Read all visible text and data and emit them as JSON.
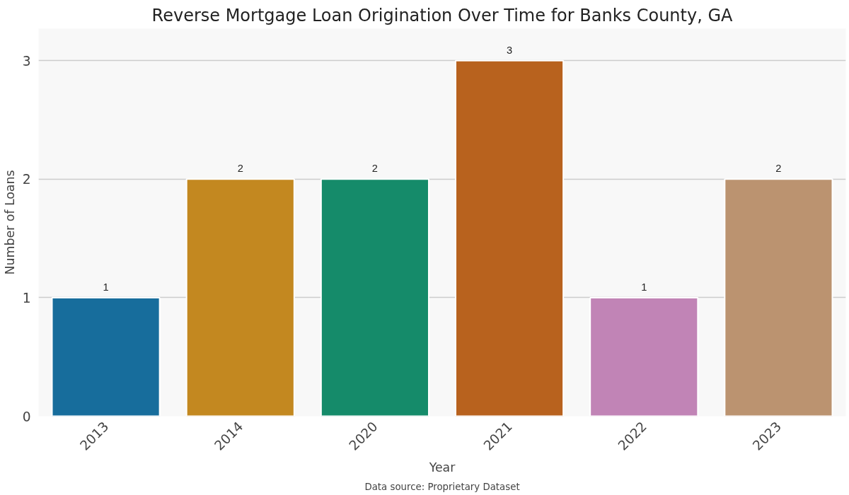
{
  "chart_data": {
    "type": "bar",
    "title": "Reverse Mortgage Loan Origination Over Time for Banks County, GA",
    "xlabel": "Year",
    "ylabel": "Number of Loans",
    "categories": [
      "2013",
      "2014",
      "2020",
      "2021",
      "2022",
      "2023"
    ],
    "values": [
      1,
      2,
      2,
      3,
      1,
      2
    ],
    "colors": [
      "#176d9c",
      "#c38820",
      "#158b6a",
      "#b8621e",
      "#c184b6",
      "#bb9370"
    ],
    "ylim": [
      0,
      3.27
    ],
    "yticks": [
      0,
      1,
      2,
      3
    ],
    "grid": "y",
    "data_labels": true,
    "annotations": [
      "Data source: Proprietary Dataset"
    ]
  }
}
